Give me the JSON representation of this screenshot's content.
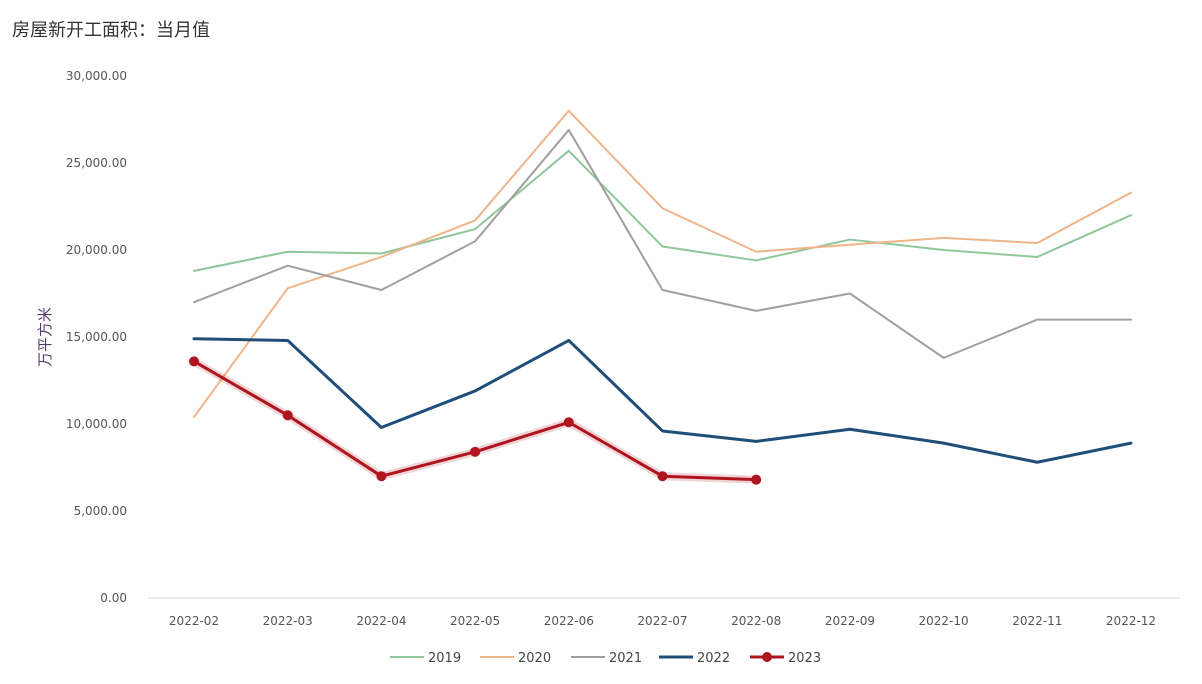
{
  "chart_data": {
    "type": "line",
    "title": "房屋新开工面积：当月值",
    "xlabel": "",
    "ylabel": "万平方米",
    "ylim": [
      0,
      30000
    ],
    "yticks": [
      0,
      5000,
      10000,
      15000,
      20000,
      25000,
      30000
    ],
    "ytick_labels": [
      "0.00",
      "5,000.00",
      "10,000.00",
      "15,000.00",
      "20,000.00",
      "25,000.00",
      "30,000.00"
    ],
    "categories": [
      "2022-02",
      "2022-03",
      "2022-04",
      "2022-05",
      "2022-06",
      "2022-07",
      "2022-08",
      "2022-09",
      "2022-10",
      "2022-11",
      "2022-12"
    ],
    "grid": false,
    "legend_position": "bottom",
    "series": [
      {
        "name": "2019",
        "color": "#8fc79a",
        "width": 2,
        "markers": false,
        "values": [
          18800,
          19900,
          19800,
          21200,
          25700,
          20200,
          19400,
          20600,
          20000,
          19600,
          22000
        ]
      },
      {
        "name": "2020",
        "color": "#f0b489",
        "width": 2,
        "markers": false,
        "values": [
          10400,
          17800,
          19600,
          21700,
          28000,
          22400,
          19900,
          20300,
          20700,
          20400,
          23300
        ]
      },
      {
        "name": "2021",
        "color": "#a0a0a0",
        "width": 2,
        "markers": false,
        "values": [
          17000,
          19100,
          17700,
          20500,
          26900,
          17700,
          16500,
          17500,
          13800,
          16000,
          16000
        ]
      },
      {
        "name": "2022",
        "color": "#1f4e79",
        "width": 3,
        "markers": false,
        "values": [
          14900,
          14800,
          9800,
          11900,
          14800,
          9600,
          9000,
          9700,
          8900,
          7800,
          8900
        ]
      },
      {
        "name": "2023",
        "color": "#b0141e",
        "width": 3,
        "markers": true,
        "values": [
          13600,
          10500,
          7000,
          8400,
          10100,
          7000,
          6800,
          null,
          null,
          null,
          null
        ]
      }
    ]
  }
}
